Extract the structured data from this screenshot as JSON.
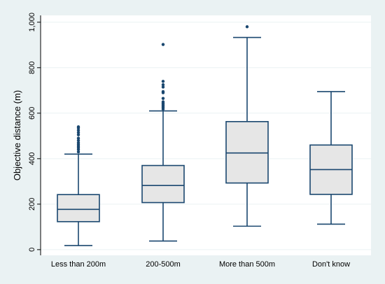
{
  "chart_data": {
    "type": "box",
    "ylabel": "Objective distance (m)",
    "xlabel": "",
    "ylim": [
      -25,
      1030
    ],
    "yticks": [
      0,
      200,
      400,
      600,
      800,
      1000
    ],
    "ytick_labels": [
      "0",
      "200",
      "400",
      "600",
      "800",
      "1,000"
    ],
    "grid": true,
    "categories": [
      "Less than 200m",
      "200-500m",
      "More than 500m",
      "Don't know"
    ],
    "boxes": [
      {
        "category": "Less than 200m",
        "whisker_low": 18,
        "q1": 123,
        "median": 177,
        "q3": 242,
        "whisker_high": 420,
        "outliers": [
          430,
          440,
          448,
          455,
          462,
          470,
          480,
          490,
          505,
          515,
          525,
          535,
          540
        ]
      },
      {
        "category": "200-500m",
        "whisker_low": 38,
        "q1": 207,
        "median": 282,
        "q3": 370,
        "whisker_high": 610,
        "outliers": [
          618,
          625,
          630,
          635,
          640,
          645,
          650,
          665,
          690,
          695,
          715,
          725,
          740,
          902
        ]
      },
      {
        "category": "More than 500m",
        "whisker_low": 103,
        "q1": 293,
        "median": 425,
        "q3": 563,
        "whisker_high": 933,
        "outliers": [
          980
        ]
      },
      {
        "category": "Don't know",
        "whisker_low": 112,
        "q1": 243,
        "median": 352,
        "q3": 460,
        "whisker_high": 695,
        "outliers": []
      }
    ],
    "colors": {
      "box_fill": "#e6e6e6",
      "line": "#1a476f",
      "grid": "#eaf2f3",
      "background": "#eaf2f3",
      "plot_background": "#ffffff"
    }
  }
}
